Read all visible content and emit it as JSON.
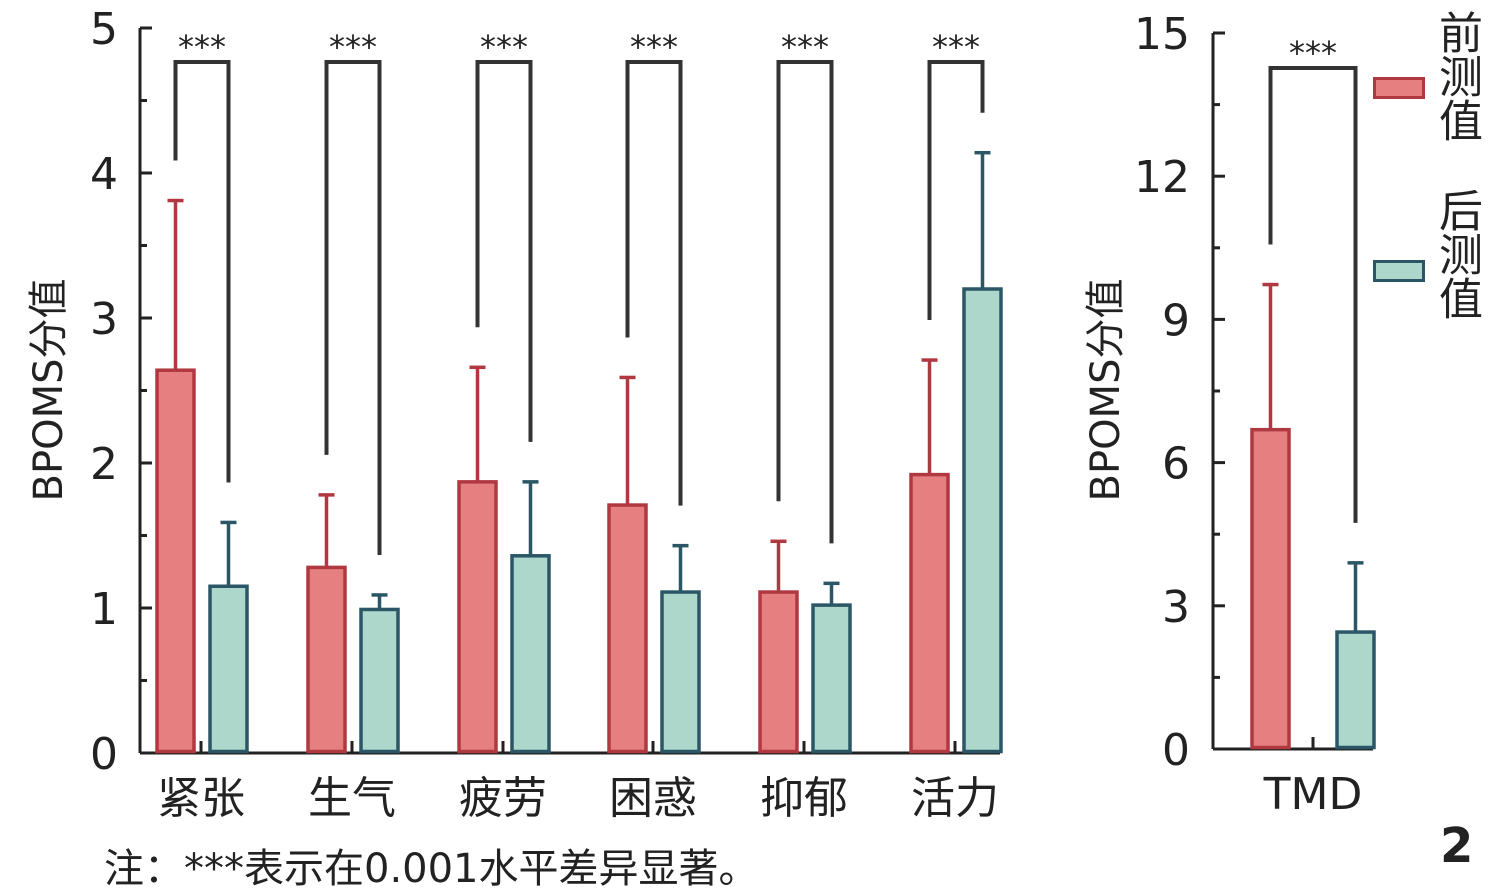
{
  "colors": {
    "pre_fill": "#e57f80",
    "pre_stroke": "#b03840",
    "post_fill": "#acd7ca",
    "post_stroke": "#2b5666",
    "axis": "#222222"
  },
  "chart_data": [
    {
      "type": "bar",
      "title": "",
      "ylabel": "BPOMS分值",
      "xlabel": "",
      "ylim": [
        0,
        5
      ],
      "yticks": [
        "0",
        "1",
        "2",
        "3",
        "4",
        "5"
      ],
      "categories": [
        "紧张",
        "生气",
        "疲劳",
        "困惑",
        "抑郁",
        "活力"
      ],
      "series": [
        {
          "name": "前测值",
          "values": [
            2.64,
            1.28,
            1.87,
            1.71,
            1.11,
            1.92
          ],
          "error_upper": [
            3.81,
            1.78,
            2.66,
            2.59,
            1.46,
            2.71
          ]
        },
        {
          "name": "后测值",
          "values": [
            1.15,
            0.99,
            1.36,
            1.11,
            1.02,
            3.2
          ],
          "error_upper": [
            1.59,
            1.09,
            1.87,
            1.43,
            1.17,
            4.14
          ]
        }
      ],
      "significance": [
        "***",
        "***",
        "***",
        "***",
        "***",
        "***"
      ]
    },
    {
      "type": "bar",
      "ylabel": "BPOMS分值",
      "ylim": [
        0,
        15
      ],
      "yticks": [
        "0",
        "3",
        "6",
        "9",
        "12",
        "15"
      ],
      "categories": [
        "TMD"
      ],
      "series": [
        {
          "name": "前测值",
          "values": [
            6.69
          ],
          "error_upper": [
            9.73
          ]
        },
        {
          "name": "后测值",
          "values": [
            2.45
          ],
          "error_upper": [
            3.9
          ]
        }
      ],
      "significance": [
        "***"
      ]
    }
  ],
  "legend": {
    "pre": "前测值",
    "post": "后测值",
    "placement": "top-right"
  },
  "note": "注：***表示在0.001水平差异显著。",
  "figure_number": "2"
}
